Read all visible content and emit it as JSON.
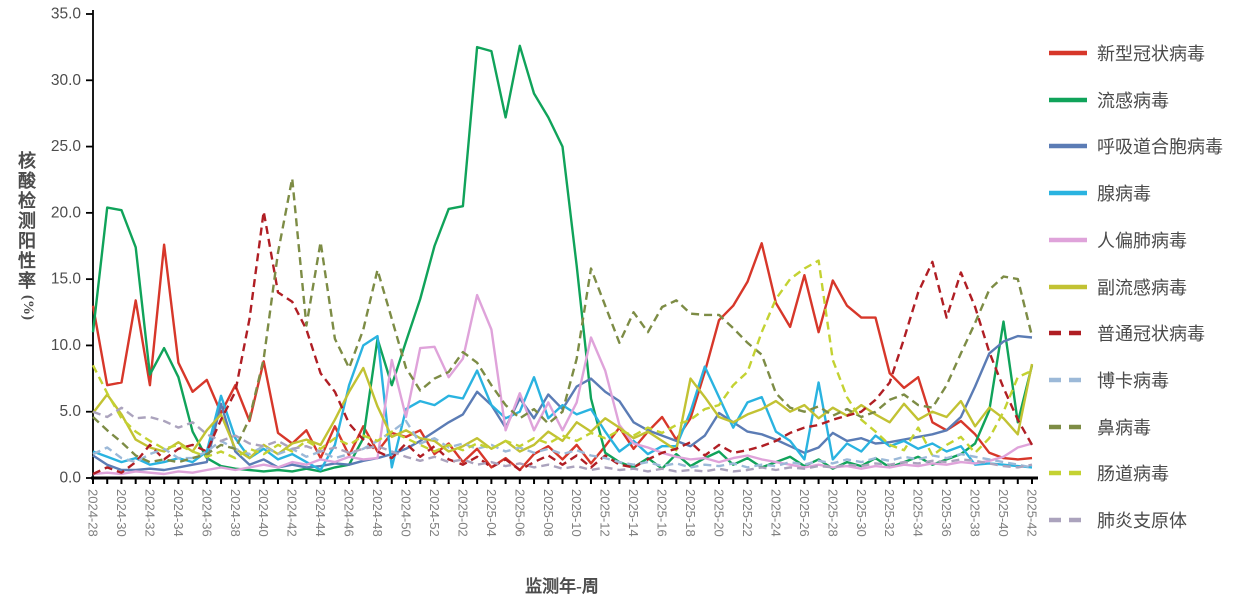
{
  "y_axis": {
    "label": "核酸检测阳性率",
    "unit": "(%)",
    "tick_labels": [
      "0.0",
      "5.0",
      "10.0",
      "15.0",
      "20.0",
      "25.0",
      "30.0",
      "35.0"
    ]
  },
  "x_axis": {
    "title": "监测年-周",
    "labeled_ticks": [
      "2024-28",
      "2024-30",
      "2024-32",
      "2024-34",
      "2024-36",
      "2024-38",
      "2024-40",
      "2024-42",
      "2024-44",
      "2024-46",
      "2024-48",
      "2024-50",
      "2024-52",
      "2025-02",
      "2025-04",
      "2025-06",
      "2025-08",
      "2025-10",
      "2025-12",
      "2025-14",
      "2025-16",
      "2025-18",
      "2025-20",
      "2025-22",
      "2025-24",
      "2025-26",
      "2025-28",
      "2025-30",
      "2025-32",
      "2025-34",
      "2025-36",
      "2025-38",
      "2025-40",
      "2025-42"
    ]
  },
  "chart_data": {
    "type": "line",
    "title": "",
    "xlabel": "监测年-周",
    "ylabel": "核酸检测阳性率(%)",
    "ylim": [
      0,
      35
    ],
    "y_tick_step": 5,
    "grid": false,
    "legend_position": "right",
    "x": [
      "2024-28",
      "2024-29",
      "2024-30",
      "2024-31",
      "2024-32",
      "2024-33",
      "2024-34",
      "2024-35",
      "2024-36",
      "2024-37",
      "2024-38",
      "2024-39",
      "2024-40",
      "2024-41",
      "2024-42",
      "2024-43",
      "2024-44",
      "2024-45",
      "2024-46",
      "2024-47",
      "2024-48",
      "2024-49",
      "2024-50",
      "2024-51",
      "2024-52",
      "2025-01",
      "2025-02",
      "2025-03",
      "2025-04",
      "2025-05",
      "2025-06",
      "2025-07",
      "2025-08",
      "2025-09",
      "2025-10",
      "2025-11",
      "2025-12",
      "2025-13",
      "2025-14",
      "2025-15",
      "2025-16",
      "2025-17",
      "2025-18",
      "2025-19",
      "2025-20",
      "2025-21",
      "2025-22",
      "2025-23",
      "2025-24",
      "2025-25",
      "2025-26",
      "2025-27",
      "2025-28",
      "2025-29",
      "2025-30",
      "2025-31",
      "2025-32",
      "2025-33",
      "2025-34",
      "2025-35",
      "2025-36",
      "2025-37",
      "2025-38",
      "2025-39",
      "2025-40",
      "2025-41",
      "2025-42"
    ],
    "series": [
      {
        "name": "新型冠状病毒",
        "color": "#d7372a",
        "style": "solid",
        "values": [
          13.0,
          7.0,
          7.2,
          13.4,
          7.0,
          17.6,
          8.7,
          6.5,
          7.4,
          4.9,
          7.0,
          4.3,
          8.8,
          3.4,
          2.6,
          3.6,
          1.5,
          3.9,
          1.7,
          3.9,
          2.0,
          3.4,
          3.1,
          3.6,
          1.8,
          2.6,
          1.2,
          2.2,
          0.8,
          1.5,
          0.6,
          1.8,
          2.4,
          1.4,
          2.5,
          1.1,
          2.4,
          3.8,
          2.2,
          3.5,
          4.6,
          2.9,
          4.5,
          8.0,
          11.9,
          13.0,
          14.8,
          17.7,
          13.2,
          11.4,
          15.3,
          11.0,
          14.9,
          13.0,
          12.1,
          12.1,
          7.9,
          6.8,
          7.6,
          4.2,
          3.6,
          4.3,
          3.3,
          1.9,
          1.5,
          1.4,
          1.5
        ]
      },
      {
        "name": "流感病毒",
        "color": "#10a35a",
        "style": "solid",
        "values": [
          11.0,
          20.4,
          20.2,
          17.4,
          7.8,
          9.8,
          7.6,
          3.5,
          1.5,
          0.9,
          0.7,
          0.6,
          0.5,
          0.6,
          0.5,
          0.7,
          0.5,
          0.8,
          1.0,
          3.0,
          10.5,
          7.0,
          10.3,
          13.5,
          17.5,
          20.3,
          20.5,
          32.5,
          32.2,
          27.2,
          32.6,
          29.0,
          27.2,
          25.0,
          16.0,
          6.0,
          1.9,
          1.2,
          0.8,
          1.5,
          0.7,
          1.8,
          0.9,
          1.5,
          2.0,
          1.0,
          1.5,
          0.8,
          1.2,
          1.6,
          0.9,
          1.4,
          0.7,
          1.2,
          0.9,
          1.5,
          0.8,
          1.2,
          1.6,
          1.0,
          1.4,
          1.8,
          2.6,
          5.1,
          11.8,
          4.2,
          8.5
        ]
      },
      {
        "name": "呼吸道合胞病毒",
        "color": "#5b7cb5",
        "style": "solid",
        "values": [
          1.7,
          1.0,
          0.6,
          0.6,
          0.7,
          0.6,
          0.8,
          1.0,
          1.2,
          5.6,
          2.0,
          1.0,
          1.4,
          0.8,
          1.0,
          0.8,
          0.9,
          1.1,
          1.0,
          1.3,
          1.5,
          1.8,
          2.2,
          2.8,
          3.5,
          4.2,
          4.8,
          6.5,
          5.5,
          3.8,
          6.0,
          4.5,
          6.3,
          5.2,
          6.9,
          7.5,
          6.5,
          5.8,
          4.2,
          3.6,
          3.2,
          2.8,
          2.4,
          3.2,
          4.9,
          4.2,
          3.5,
          3.3,
          2.9,
          2.4,
          1.9,
          2.3,
          3.4,
          2.8,
          3.0,
          2.6,
          2.7,
          2.9,
          3.1,
          3.3,
          3.6,
          4.6,
          6.9,
          9.4,
          10.3,
          10.7,
          10.6
        ]
      },
      {
        "name": "腺病毒",
        "color": "#2ab3e0",
        "style": "solid",
        "values": [
          2.0,
          1.6,
          1.2,
          1.5,
          1.0,
          1.2,
          1.5,
          1.2,
          2.0,
          6.2,
          3.0,
          1.5,
          2.2,
          1.4,
          1.8,
          1.2,
          0.6,
          2.5,
          7.0,
          10.0,
          10.7,
          0.8,
          5.2,
          5.8,
          5.5,
          6.2,
          6.0,
          8.1,
          5.5,
          4.5,
          5.0,
          7.6,
          4.5,
          5.5,
          4.8,
          5.2,
          3.5,
          2.0,
          2.8,
          1.8,
          2.4,
          2.4,
          5.0,
          8.4,
          6.1,
          3.8,
          5.7,
          6.1,
          3.5,
          2.8,
          1.4,
          7.2,
          1.4,
          2.6,
          2.0,
          3.2,
          2.4,
          2.8,
          2.2,
          2.6,
          2.0,
          2.4,
          1.0,
          1.1,
          1.0,
          0.9,
          0.8
        ]
      },
      {
        "name": "人偏肺病毒",
        "color": "#dfa3da",
        "style": "solid",
        "values": [
          0.3,
          0.4,
          0.3,
          0.5,
          0.4,
          0.3,
          0.5,
          0.4,
          0.6,
          0.8,
          0.6,
          0.8,
          1.0,
          0.8,
          1.2,
          1.0,
          1.4,
          1.2,
          1.6,
          1.4,
          1.5,
          8.9,
          4.6,
          9.8,
          9.9,
          7.6,
          9.0,
          13.8,
          11.2,
          3.6,
          6.4,
          3.6,
          5.7,
          3.6,
          5.7,
          10.6,
          8.1,
          4.0,
          2.6,
          2.3,
          1.9,
          1.6,
          1.4,
          1.5,
          1.2,
          1.5,
          1.7,
          1.4,
          1.2,
          1.0,
          0.8,
          1.0,
          0.8,
          0.9,
          0.7,
          0.9,
          0.8,
          1.0,
          0.9,
          1.1,
          1.0,
          1.2,
          1.1,
          1.3,
          1.6,
          2.3,
          2.6
        ]
      },
      {
        "name": "副流感病毒",
        "color": "#c2c233",
        "style": "solid",
        "values": [
          4.9,
          6.3,
          4.8,
          2.9,
          2.3,
          2.0,
          2.7,
          2.0,
          3.6,
          4.8,
          2.2,
          1.5,
          2.5,
          1.8,
          2.6,
          2.9,
          2.5,
          4.4,
          6.5,
          8.3,
          5.4,
          3.1,
          3.6,
          3.0,
          2.8,
          2.0,
          2.4,
          3.0,
          2.2,
          2.8,
          2.0,
          2.5,
          3.5,
          2.8,
          4.2,
          3.5,
          4.5,
          3.8,
          3.0,
          3.5,
          2.8,
          2.1,
          7.5,
          6.1,
          4.6,
          4.2,
          4.8,
          5.2,
          5.8,
          5.0,
          5.5,
          4.5,
          5.3,
          4.7,
          5.5,
          4.8,
          4.2,
          5.6,
          4.4,
          5.0,
          4.6,
          5.8,
          3.9,
          5.3,
          4.5,
          3.3,
          8.6
        ]
      },
      {
        "name": "普通冠状病毒",
        "color": "#b01e24",
        "style": "dashed",
        "values": [
          0.3,
          0.8,
          0.4,
          1.2,
          2.5,
          1.4,
          2.2,
          2.5,
          2.0,
          4.4,
          6.5,
          12.0,
          20.1,
          14.0,
          13.3,
          11.2,
          7.9,
          6.5,
          4.1,
          2.9,
          2.0,
          1.5,
          2.6,
          1.6,
          2.4,
          1.4,
          1.0,
          1.6,
          0.8,
          1.4,
          0.6,
          1.2,
          1.7,
          1.0,
          1.7,
          0.8,
          1.7,
          1.0,
          0.8,
          1.4,
          1.9,
          2.2,
          2.7,
          1.7,
          2.5,
          1.9,
          2.1,
          2.4,
          2.8,
          3.4,
          3.8,
          4.0,
          4.4,
          4.7,
          5.0,
          5.9,
          7.2,
          10.5,
          14.0,
          16.3,
          12.1,
          15.5,
          12.9,
          9.5,
          6.8,
          4.4,
          2.5
        ]
      },
      {
        "name": "博卡病毒",
        "color": "#9cb9d8",
        "style": "dashed",
        "values": [
          1.8,
          2.3,
          1.5,
          1.2,
          1.8,
          2.2,
          1.5,
          1.5,
          2.0,
          2.8,
          2.2,
          1.8,
          2.4,
          1.8,
          2.2,
          1.6,
          2.0,
          1.5,
          1.8,
          2.2,
          2.8,
          3.5,
          4.3,
          2.6,
          3.0,
          2.3,
          2.6,
          2.2,
          2.5,
          2.0,
          2.3,
          1.9,
          2.2,
          1.8,
          2.1,
          1.7,
          1.5,
          1.2,
          1.0,
          1.2,
          0.9,
          1.1,
          0.8,
          1.0,
          0.9,
          1.1,
          0.8,
          1.0,
          0.9,
          1.2,
          1.0,
          1.3,
          1.1,
          1.4,
          1.2,
          1.5,
          1.3,
          1.6,
          1.4,
          1.7,
          1.5,
          1.8,
          1.6,
          1.4,
          1.2,
          1.0,
          0.8
        ]
      },
      {
        "name": "鼻病毒",
        "color": "#7d8c45",
        "style": "dashed",
        "values": [
          4.6,
          3.6,
          2.7,
          1.7,
          1.2,
          1.4,
          1.2,
          1.5,
          1.8,
          2.5,
          2.2,
          4.5,
          9.0,
          17.0,
          22.6,
          11.5,
          17.8,
          10.5,
          8.3,
          11.2,
          15.7,
          12.0,
          8.3,
          6.6,
          7.5,
          8.0,
          9.5,
          8.7,
          7.0,
          5.5,
          4.5,
          5.2,
          4.1,
          5.0,
          9.0,
          15.8,
          13.0,
          10.2,
          12.5,
          11.0,
          12.9,
          13.4,
          12.4,
          12.3,
          12.3,
          11.3,
          10.2,
          9.3,
          6.4,
          5.3,
          5.0,
          5.4,
          4.7,
          5.2,
          4.6,
          5.0,
          5.9,
          6.3,
          5.5,
          5.3,
          7.0,
          9.4,
          11.7,
          14.2,
          15.2,
          15.0,
          10.7
        ]
      },
      {
        "name": "肠道病毒",
        "color": "#c4d232",
        "style": "dashed",
        "values": [
          8.5,
          6.4,
          4.5,
          3.5,
          2.8,
          2.2,
          2.5,
          2.0,
          1.6,
          2.0,
          1.5,
          2.2,
          1.8,
          2.5,
          2.0,
          2.8,
          2.2,
          3.0,
          2.5,
          3.2,
          2.8,
          3.5,
          3.0,
          2.5,
          2.0,
          2.5,
          2.1,
          2.6,
          2.2,
          2.8,
          2.4,
          3.0,
          2.6,
          3.2,
          2.8,
          3.4,
          3.0,
          3.6,
          3.2,
          3.8,
          3.4,
          4.0,
          4.4,
          5.2,
          5.5,
          7.0,
          8.0,
          11.0,
          13.5,
          15.0,
          15.8,
          16.4,
          8.9,
          6.1,
          4.4,
          3.5,
          2.5,
          2.1,
          3.8,
          1.7,
          2.5,
          3.1,
          1.9,
          3.0,
          5.0,
          7.6,
          8.1
        ]
      },
      {
        "name": "肺炎支原体",
        "color": "#aba3bd",
        "style": "dashed",
        "values": [
          5.0,
          4.6,
          5.3,
          4.5,
          4.6,
          4.3,
          3.8,
          4.2,
          3.3,
          2.8,
          3.2,
          2.6,
          2.4,
          2.8,
          2.2,
          2.4,
          2.0,
          2.3,
          1.9,
          2.2,
          2.4,
          2.0,
          1.6,
          1.3,
          1.6,
          1.2,
          1.4,
          1.0,
          1.2,
          0.9,
          1.1,
          0.8,
          1.0,
          0.7,
          0.9,
          0.6,
          0.8,
          0.6,
          0.7,
          0.5,
          0.7,
          0.5,
          0.6,
          0.5,
          0.7,
          0.5,
          0.6,
          0.8,
          0.6,
          0.8,
          0.7,
          0.9,
          0.8,
          1.0,
          0.9,
          1.1,
          1.0,
          1.2,
          1.1,
          1.3,
          1.2,
          1.4,
          1.3,
          1.1,
          0.9,
          0.8,
          1.0
        ]
      }
    ]
  }
}
